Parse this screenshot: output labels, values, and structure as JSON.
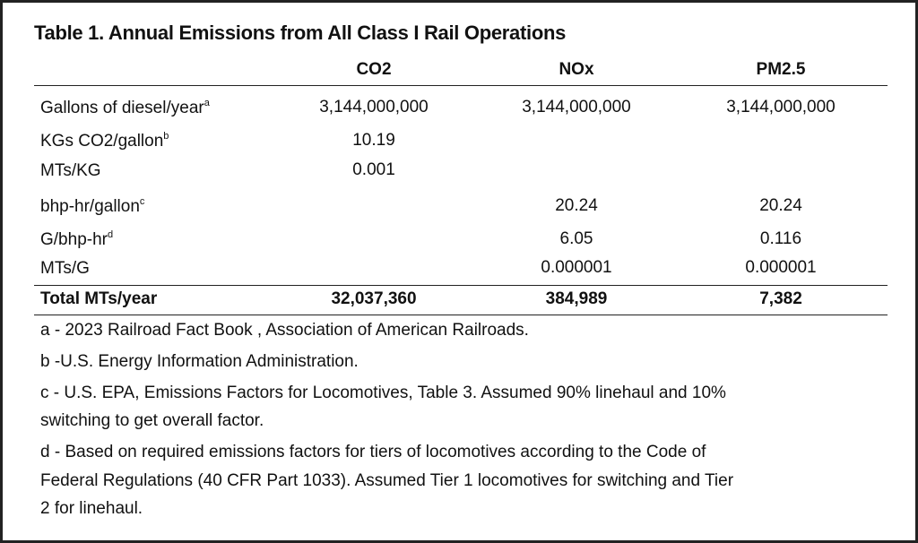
{
  "title": "Table 1. Annual Emissions from All Class I Rail Operations",
  "columns": [
    "CO2",
    "NOx",
    "PM2.5"
  ],
  "rows": [
    {
      "label": "Gallons of diesel/year",
      "note": "a",
      "co2": "3,144,000,000",
      "nox": "3,144,000,000",
      "pm": "3,144,000,000"
    },
    {
      "label": "KGs CO2/gallon",
      "note": "b",
      "co2": "10.19",
      "nox": "",
      "pm": ""
    },
    {
      "label": "MTs/KG",
      "note": "",
      "co2": "0.001",
      "nox": "",
      "pm": ""
    },
    {
      "label": "bhp-hr/gallon",
      "note": "c",
      "co2": "",
      "nox": "20.24",
      "pm": "20.24"
    },
    {
      "label": "G/bhp-hr",
      "note": "d",
      "co2": "",
      "nox": "6.05",
      "pm": "0.116"
    },
    {
      "label": "MTs/G",
      "note": "",
      "co2": "",
      "nox": "0.000001",
      "pm": "0.000001"
    }
  ],
  "total": {
    "label": "Total MTs/year",
    "co2": "32,037,360",
    "nox": "384,989",
    "pm": "7,382"
  },
  "footnotes": [
    "a - 2023 Railroad Fact Book , Association of American Railroads.",
    "b -U.S. Energy Information Administration.",
    "c - U.S. EPA, Emissions Factors for Locomotives, Table 3. Assumed 90% linehaul and 10%",
    "switching to get overall factor.",
    "d - Based on required emissions factors for tiers of locomotives according to the Code of",
    "Federal Regulations (40 CFR Part 1033). Assumed Tier 1 locomotives for switching and Tier",
    "2 for linehaul."
  ]
}
